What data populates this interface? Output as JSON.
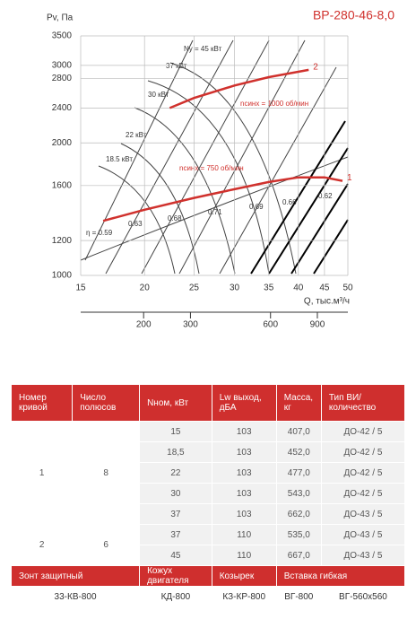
{
  "chart_data": {
    "type": "line",
    "title": "ВР-280-46-8,0",
    "y_label": "Pv, Па",
    "x_label": "Q, тыс.м³/ч",
    "log_x": true,
    "log_y": true,
    "grid": true,
    "xlim": [
      15,
      50
    ],
    "xticks": [
      15,
      20,
      25,
      30,
      35,
      40,
      45,
      50
    ],
    "ylim": [
      1000,
      3500
    ],
    "yticks": [
      1000,
      1200,
      1600,
      2000,
      2400,
      2800,
      3000,
      3500
    ],
    "x2lim": [
      116,
      1172
    ],
    "x2ticks": [
      200,
      300,
      600,
      900
    ],
    "series": [
      {
        "name": "1",
        "color": "#d0312d",
        "x": [
          16.6,
          20,
          25,
          30,
          35,
          40,
          45,
          48.8
        ],
        "values": [
          1330,
          1410,
          1500,
          1570,
          1630,
          1670,
          1670,
          1640
        ]
      },
      {
        "name": "2",
        "color": "#d0312d",
        "x": [
          22.4,
          25,
          30,
          35,
          41.9
        ],
        "values": [
          2400,
          2530,
          2700,
          2820,
          2930
        ]
      }
    ],
    "speed_labels": [
      "nсинх = 750 об/мин",
      "nсинх = 1000 об/мин"
    ],
    "power_labels": [
      "Ny = 45 кВт",
      "37 кВт",
      "30 кВт",
      "22 кВт",
      "18.5 кВт"
    ],
    "efficiency_labels": [
      "η = 0.59",
      "0.63",
      "0.68",
      "0.71",
      "0.69",
      "0.66",
      "0.62"
    ]
  },
  "table": {
    "header": [
      "Номер кривой",
      "Число полюсов",
      "Nном, кВт",
      "Lw выход, дБА",
      "Масса, кг",
      "Тип ВИ/ количество"
    ],
    "groups": [
      {
        "curve": "1",
        "poles": "8",
        "rows": [
          [
            "15",
            "103",
            "407,0",
            "ДО-42 / 5"
          ],
          [
            "18,5",
            "103",
            "452,0",
            "ДО-42 / 5"
          ],
          [
            "22",
            "103",
            "477,0",
            "ДО-42 / 5"
          ],
          [
            "30",
            "103",
            "543,0",
            "ДО-42 / 5"
          ],
          [
            "37",
            "103",
            "662,0",
            "ДО-43 / 5"
          ]
        ]
      },
      {
        "curve": "2",
        "poles": "6",
        "rows": [
          [
            "37",
            "110",
            "535,0",
            "ДО-43 / 5"
          ],
          [
            "45",
            "110",
            "667,0",
            "ДО-43 / 5"
          ]
        ]
      }
    ],
    "accessories_header": [
      "Зонт защитный",
      "Кожух двигателя",
      "Козырек",
      "Вставка гибкая"
    ],
    "accessories": [
      "33-КВ-800",
      "КД-800",
      "КЗ-КР-800",
      "ВГ-800",
      "ВГ-560х560"
    ]
  }
}
